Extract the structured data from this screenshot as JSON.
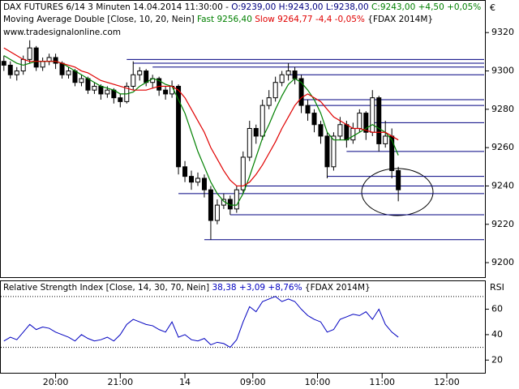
{
  "chart_data": [
    {
      "type": "candlestick",
      "title": "DAX FUTURES 6/14 3 Minuten  14.04.2014 11:30:00 -",
      "ohlc_text": "O:9239,00 H:9243,00 L:9238,00",
      "close_text": "C:9243,00 +4,50 +0,05%",
      "indicator": "Moving Average Double [Close, 10, 20, Nein]",
      "indicator_symbol": "{FDAX 2014M}",
      "website": "www.tradesignalonline.com",
      "currency": "€",
      "x": [
        0,
        1,
        2,
        3,
        4,
        5,
        6,
        7,
        8,
        9,
        10,
        11,
        12,
        13,
        14,
        15,
        16,
        17,
        18,
        19,
        20,
        21,
        22,
        23,
        24,
        25,
        26,
        27,
        28,
        29,
        30,
        31,
        32,
        33,
        34,
        35,
        36,
        37,
        38,
        39,
        40,
        41,
        42,
        43,
        44,
        45,
        46,
        47,
        48,
        49,
        50,
        51,
        52,
        53,
        54,
        55,
        56,
        57,
        58,
        59,
        60,
        61
      ],
      "candles": [
        [
          9305,
          9308,
          9300,
          9303
        ],
        [
          9303,
          9305,
          9296,
          9298
        ],
        [
          9298,
          9302,
          9295,
          9300
        ],
        [
          9300,
          9308,
          9298,
          9306
        ],
        [
          9306,
          9316,
          9304,
          9312
        ],
        [
          9312,
          9313,
          9300,
          9302
        ],
        [
          9302,
          9307,
          9300,
          9305
        ],
        [
          9305,
          9309,
          9303,
          9307
        ],
        [
          9307,
          9309,
          9301,
          9304
        ],
        [
          9304,
          9305,
          9296,
          9298
        ],
        [
          9298,
          9302,
          9296,
          9300
        ],
        [
          9300,
          9301,
          9292,
          9294
        ],
        [
          9294,
          9298,
          9292,
          9296
        ],
        [
          9296,
          9297,
          9288,
          9290
        ],
        [
          9290,
          9294,
          9288,
          9292
        ],
        [
          9292,
          9293,
          9285,
          9288
        ],
        [
          9288,
          9292,
          9286,
          9290
        ],
        [
          9290,
          9291,
          9283,
          9286
        ],
        [
          9286,
          9288,
          9281,
          9284
        ],
        [
          9284,
          9294,
          9283,
          9292
        ],
        [
          9292,
          9305,
          9290,
          9298
        ],
        [
          9298,
          9302,
          9295,
          9300
        ],
        [
          9300,
          9301,
          9292,
          9294
        ],
        [
          9294,
          9298,
          9291,
          9296
        ],
        [
          9296,
          9297,
          9287,
          9290
        ],
        [
          9290,
          9292,
          9285,
          9288
        ],
        [
          9288,
          9295,
          9286,
          9292
        ],
        [
          9292,
          9293,
          9246,
          9250
        ],
        [
          9250,
          9253,
          9242,
          9245
        ],
        [
          9245,
          9248,
          9238,
          9242
        ],
        [
          9242,
          9247,
          9240,
          9244
        ],
        [
          9244,
          9246,
          9234,
          9238
        ],
        [
          9238,
          9240,
          9212,
          9222
        ],
        [
          9222,
          9233,
          9220,
          9230
        ],
        [
          9230,
          9236,
          9228,
          9233
        ],
        [
          9233,
          9235,
          9225,
          9228
        ],
        [
          9228,
          9240,
          9226,
          9238
        ],
        [
          9238,
          9258,
          9236,
          9255
        ],
        [
          9255,
          9274,
          9253,
          9270
        ],
        [
          9270,
          9272,
          9262,
          9266
        ],
        [
          9266,
          9285,
          9264,
          9282
        ],
        [
          9282,
          9290,
          9280,
          9286
        ],
        [
          9286,
          9297,
          9284,
          9294
        ],
        [
          9294,
          9300,
          9292,
          9298
        ],
        [
          9298,
          9304,
          9295,
          9300
        ],
        [
          9300,
          9302,
          9293,
          9296
        ],
        [
          9296,
          9298,
          9278,
          9282
        ],
        [
          9282,
          9285,
          9274,
          9278
        ],
        [
          9278,
          9280,
          9268,
          9272
        ],
        [
          9272,
          9274,
          9262,
          9266
        ],
        [
          9266,
          9268,
          9244,
          9250
        ],
        [
          9250,
          9268,
          9248,
          9266
        ],
        [
          9266,
          9276,
          9264,
          9272
        ],
        [
          9272,
          9274,
          9260,
          9264
        ],
        [
          9264,
          9273,
          9262,
          9270
        ],
        [
          9270,
          9280,
          9268,
          9278
        ],
        [
          9278,
          9279,
          9264,
          9268
        ],
        [
          9268,
          9290,
          9266,
          9286
        ],
        [
          9286,
          9287,
          9258,
          9262
        ],
        [
          9262,
          9274,
          9260,
          9266
        ],
        [
          9266,
          9270,
          9244,
          9248
        ],
        [
          9248,
          9250,
          9232,
          9238
        ]
      ],
      "series": [
        {
          "name": "Fast 9256,40",
          "color": "#008000",
          "values": [
            9308,
            9306,
            9304,
            9303,
            9304,
            9305,
            9305,
            9305,
            9305,
            9304,
            9302,
            9300,
            9298,
            9296,
            9294,
            9292,
            9291,
            9290,
            9288,
            9288,
            9289,
            9292,
            9294,
            9296,
            9295,
            9293,
            9292,
            9285,
            9278,
            9268,
            9258,
            9250,
            9242,
            9236,
            9232,
            9230,
            9230,
            9236,
            9245,
            9255,
            9265,
            9272,
            9280,
            9287,
            9293,
            9296,
            9294,
            9290,
            9285,
            9278,
            9268,
            9264,
            9264,
            9264,
            9266,
            9268,
            9270,
            9272,
            9270,
            9268,
            9264,
            9256
          ]
        },
        {
          "name": "Slow 9264,77 -4,4 -0,05%",
          "color": "#e00000",
          "values": [
            9312,
            9310,
            9308,
            9306,
            9305,
            9305,
            9305,
            9305,
            9305,
            9304,
            9303,
            9302,
            9300,
            9299,
            9297,
            9295,
            9294,
            9293,
            9292,
            9291,
            9290,
            9290,
            9290,
            9291,
            9292,
            9292,
            9292,
            9290,
            9286,
            9280,
            9274,
            9268,
            9260,
            9254,
            9248,
            9243,
            9240,
            9240,
            9242,
            9246,
            9251,
            9257,
            9263,
            9270,
            9276,
            9282,
            9286,
            9288,
            9286,
            9284,
            9280,
            9276,
            9274,
            9272,
            9270,
            9270,
            9269,
            9268,
            9268,
            9268,
            9266,
            9264
          ]
        }
      ],
      "levels": [
        {
          "value": 9306,
          "from": 19
        },
        {
          "value": 9304,
          "from": 20
        },
        {
          "value": 9302,
          "from": 23
        },
        {
          "value": 9298,
          "from": 44
        },
        {
          "value": 9285,
          "from": 46
        },
        {
          "value": 9282,
          "from": 47
        },
        {
          "value": 9273,
          "from": 57
        },
        {
          "value": 9258,
          "from": 53
        },
        {
          "value": 9245,
          "from": 50
        },
        {
          "value": 9240,
          "from": 36
        },
        {
          "value": 9236,
          "from": 27
        },
        {
          "value": 9225,
          "from": 35
        },
        {
          "value": 9212,
          "from": 31
        }
      ],
      "level_color": "#000080",
      "xlim": [
        -0.6,
        74.4
      ],
      "xticks": [
        {
          "value": 8,
          "label": "20:00"
        },
        {
          "value": 18,
          "label": "21:00"
        },
        {
          "value": 28,
          "label": "14"
        },
        {
          "value": 38.5,
          "label": "09:00"
        },
        {
          "value": 48.5,
          "label": "10:00"
        },
        {
          "value": 58.5,
          "label": "11:00"
        },
        {
          "value": 68.5,
          "label": "12:00"
        }
      ],
      "ylim": [
        9192,
        9337
      ],
      "yticks": [
        9200,
        9220,
        9240,
        9260,
        9280,
        9300,
        9320
      ]
    },
    {
      "type": "line",
      "title": "Relative Strength Index [Close, 14, 30, 70, Nein]",
      "value_text": "38,38 +3,09 +8,76%",
      "indicator_symbol": "{FDAX 2014M}",
      "axis_label": "RSI",
      "series": [
        {
          "color": "#0000c0",
          "values": [
            35,
            38,
            36,
            42,
            48,
            44,
            46,
            45,
            42,
            40,
            38,
            35,
            40,
            37,
            35,
            36,
            38,
            35,
            40,
            48,
            52,
            50,
            48,
            47,
            44,
            42,
            50,
            38,
            40,
            36,
            35,
            37,
            32,
            34,
            33,
            30,
            36,
            50,
            62,
            58,
            66,
            68,
            70,
            66,
            68,
            66,
            60,
            55,
            52,
            50,
            42,
            44,
            52,
            54,
            56,
            55,
            58,
            52,
            60,
            48,
            42,
            38
          ]
        }
      ],
      "bands": [
        30,
        70
      ],
      "ylim": [
        10,
        82
      ],
      "yticks": [
        20,
        40,
        60
      ]
    }
  ]
}
